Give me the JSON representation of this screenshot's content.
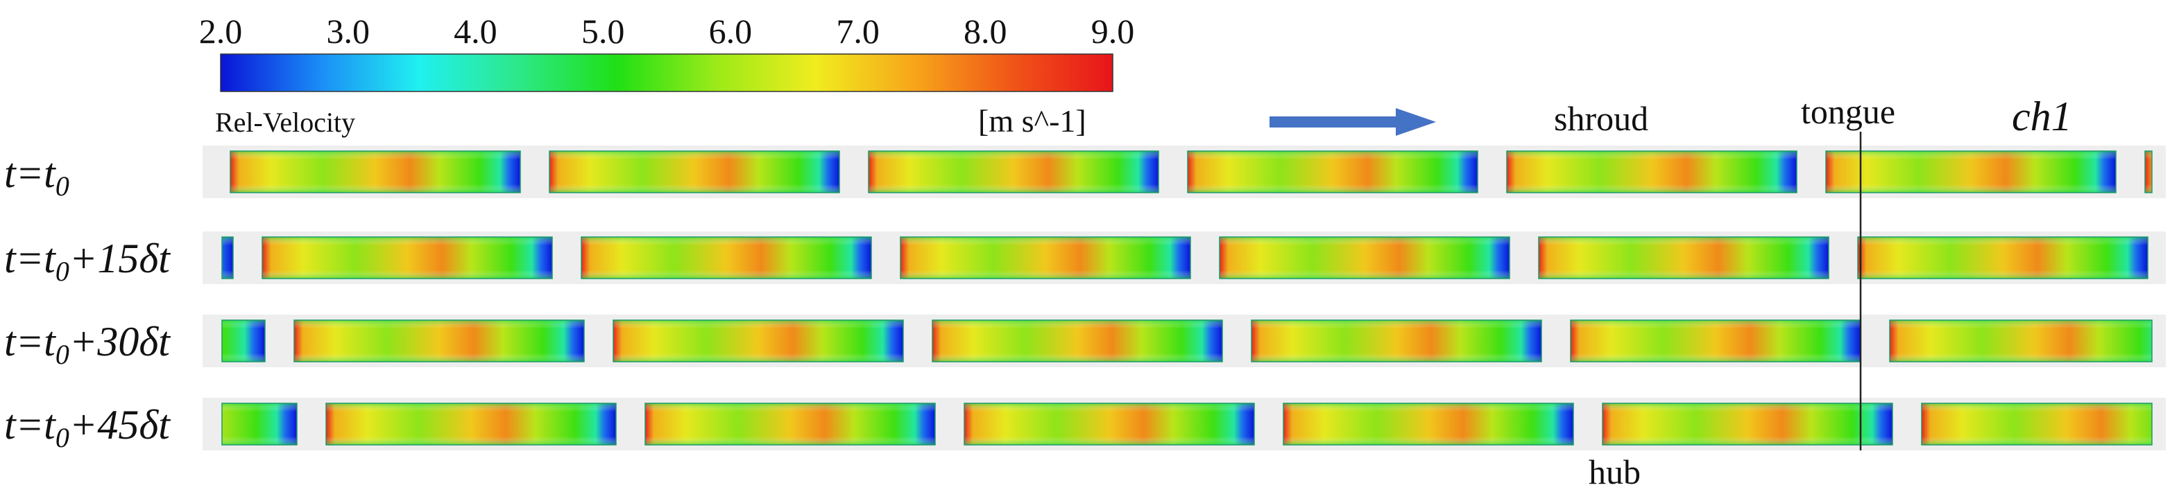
{
  "colorbar": {
    "title": "Rel-Velocity",
    "units": "[m s^-1]",
    "ticks": [
      "2.0",
      "3.0",
      "4.0",
      "5.0",
      "6.0",
      "7.0",
      "8.0",
      "9.0"
    ],
    "colors": [
      "#0a14d8",
      "#1b8cf6",
      "#20f0f0",
      "#2de88a",
      "#1fe016",
      "#9cea18",
      "#f0ec1e",
      "#f7a51a",
      "#f05418",
      "#e8141a"
    ]
  },
  "labels": {
    "shroud": "shroud",
    "tongue": "tongue",
    "channel": "ch1",
    "hub": "hub"
  },
  "flow_arrow_color": "#4472c4",
  "rows": [
    {
      "t": "t",
      "eq": "=t",
      "sub": "0",
      "suffix": ""
    },
    {
      "t": "t",
      "eq": "=t",
      "sub": "0",
      "suffix": "+15δt"
    },
    {
      "t": "t",
      "eq": "=t",
      "sub": "0",
      "suffix": "+30δt"
    },
    {
      "t": "t",
      "eq": "=t",
      "sub": "0",
      "suffix": "+45δt"
    }
  ]
}
